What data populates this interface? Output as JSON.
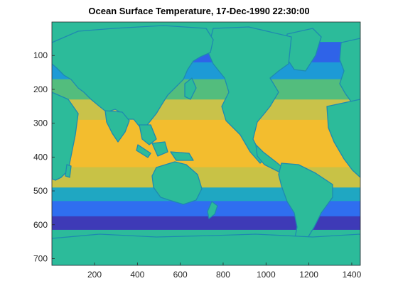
{
  "chart_data": {
    "type": "heatmap",
    "title": "Ocean Surface Temperature, 17-Dec-1990 22:30:00",
    "xlabel": "",
    "ylabel": "",
    "xlim": [
      1,
      1440
    ],
    "ylim": [
      1,
      720
    ],
    "y_reversed": true,
    "x_ticks": [
      200,
      400,
      600,
      800,
      1000,
      1200,
      1400
    ],
    "y_ticks": [
      100,
      200,
      300,
      400,
      500,
      600,
      700
    ],
    "colormap": "parula",
    "land_color": "#2cbb9a",
    "coastline_color": "#1e8ab0",
    "bands": [
      {
        "y_from": 1,
        "y_to": 60,
        "color": "#2cbb9a"
      },
      {
        "y_from": 60,
        "y_to": 120,
        "color": "#2f63e8"
      },
      {
        "y_from": 120,
        "y_to": 170,
        "color": "#1d9ad6"
      },
      {
        "y_from": 170,
        "y_to": 230,
        "color": "#53bd7d"
      },
      {
        "y_from": 230,
        "y_to": 290,
        "color": "#c9c24a"
      },
      {
        "y_from": 290,
        "y_to": 430,
        "color": "#f3bd2e"
      },
      {
        "y_from": 430,
        "y_to": 490,
        "color": "#c8c246"
      },
      {
        "y_from": 490,
        "y_to": 530,
        "color": "#1fa7c2"
      },
      {
        "y_from": 530,
        "y_to": 575,
        "color": "#2f6ef0"
      },
      {
        "y_from": 575,
        "y_to": 615,
        "color": "#3e3ab7"
      },
      {
        "y_from": 615,
        "y_to": 720,
        "color": "#2cbb9a"
      }
    ]
  }
}
